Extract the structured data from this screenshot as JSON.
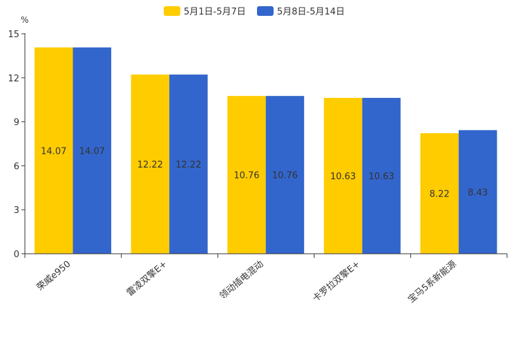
{
  "chart_data": {
    "type": "bar",
    "unit": "%",
    "categories": [
      "荣威e950",
      "雷凌双擎E+",
      "领动插电混动",
      "卡罗拉双擎E+",
      "宝马5系新能源"
    ],
    "series": [
      {
        "name": "5月1日-5月7日",
        "color": "#FFCC00",
        "values": [
          14.07,
          12.22,
          10.76,
          10.63,
          8.22
        ]
      },
      {
        "name": "5月8日-5月14日",
        "color": "#3366CC",
        "values": [
          14.07,
          12.22,
          10.76,
          10.63,
          8.43
        ]
      }
    ],
    "ylim": [
      0,
      15
    ],
    "yticks": [
      0,
      3,
      6,
      9,
      12,
      15
    ],
    "legend": "top-center",
    "grid": false
  }
}
